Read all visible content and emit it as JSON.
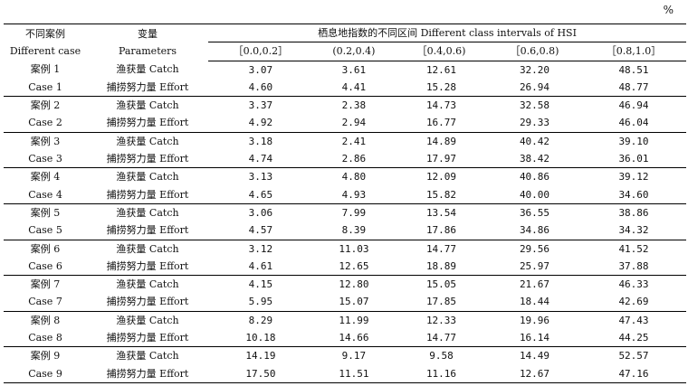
{
  "unit": "%",
  "headers": {
    "case": "不同案例\nDifferent case",
    "case_cn": "不同案例",
    "case_en": "Different case",
    "param_cn": "变量",
    "param_en": "Parameters",
    "intervals_title": "栖息地指数的不同区间 Different class intervals of HSI",
    "intervals": [
      "［0.0,0.2］",
      "(0.2,0.4)",
      "［0.4,0.6)",
      "［0.6,0.8)",
      "［0.8,1.0］"
    ]
  },
  "rows": [
    {
      "case_cn": "案例 1",
      "case_en": "Case 1",
      "catch_label": "渔获量 Catch",
      "effort_label": "捕捞努力量 Effort",
      "catch": [
        "3.07",
        "3.61",
        "12.61",
        "32.20",
        "48.51"
      ],
      "effort": [
        "4.60",
        "4.41",
        "15.28",
        "26.94",
        "48.77"
      ]
    },
    {
      "case_cn": "案例 2",
      "case_en": "Case 2",
      "catch_label": "渔获量 Catch",
      "effort_label": "捕捞努力量 Effort",
      "catch": [
        "3.37",
        "2.38",
        "14.73",
        "32.58",
        "46.94"
      ],
      "effort": [
        "4.92",
        "2.94",
        "16.77",
        "29.33",
        "46.04"
      ]
    },
    {
      "case_cn": "案例 3",
      "case_en": "Case 3",
      "catch_label": "渔获量 Catch",
      "effort_label": "捕捞努力量 Effort",
      "catch": [
        "3.18",
        "2.41",
        "14.89",
        "40.42",
        "39.10"
      ],
      "effort": [
        "4.74",
        "2.86",
        "17.97",
        "38.42",
        "36.01"
      ]
    },
    {
      "case_cn": "案例 4",
      "case_en": "Case 4",
      "catch_label": "渔获量 Catch",
      "effort_label": "捕捞努力量 Effort",
      "catch": [
        "3.13",
        "4.80",
        "12.09",
        "40.86",
        "39.12"
      ],
      "effort": [
        "4.65",
        "4.93",
        "15.82",
        "40.00",
        "34.60"
      ]
    },
    {
      "case_cn": "案例 5",
      "case_en": "Case 5",
      "catch_label": "渔获量 Catch",
      "effort_label": "捕捞努力量 Effort",
      "catch": [
        "3.06",
        "7.99",
        "13.54",
        "36.55",
        "38.86"
      ],
      "effort": [
        "4.57",
        "8.39",
        "17.86",
        "34.86",
        "34.32"
      ]
    },
    {
      "case_cn": "案例 6",
      "case_en": "Case 6",
      "catch_label": "渔获量 Catch",
      "effort_label": "捕捞努力量 Effort",
      "catch": [
        "3.12",
        "11.03",
        "14.77",
        "29.56",
        "41.52"
      ],
      "effort": [
        "4.61",
        "12.65",
        "18.89",
        "25.97",
        "37.88"
      ]
    },
    {
      "case_cn": "案例 7",
      "case_en": "Case 7",
      "catch_label": "渔获量 Catch",
      "effort_label": "捕捞努力量 Effort",
      "catch": [
        "4.15",
        "12.80",
        "15.05",
        "21.67",
        "46.33"
      ],
      "effort": [
        "5.95",
        "15.07",
        "17.85",
        "18.44",
        "42.69"
      ]
    },
    {
      "case_cn": "案例 8",
      "case_en": "Case 8",
      "catch_label": "渔获量 Catch",
      "effort_label": "捕捞努力量 Effort",
      "catch": [
        "8.29",
        "11.99",
        "12.33",
        "19.96",
        "47.43"
      ],
      "effort": [
        "10.18",
        "14.66",
        "14.77",
        "16.14",
        "44.25"
      ]
    },
    {
      "case_cn": "案例 9",
      "case_en": "Case 9",
      "catch_label": "渔获量 Catch",
      "effort_label": "捕捞努力量 Effort",
      "catch": [
        "14.19",
        "9.17",
        "9.58",
        "14.49",
        "52.57"
      ],
      "effort": [
        "17.50",
        "11.51",
        "11.16",
        "12.67",
        "47.16"
      ]
    }
  ]
}
